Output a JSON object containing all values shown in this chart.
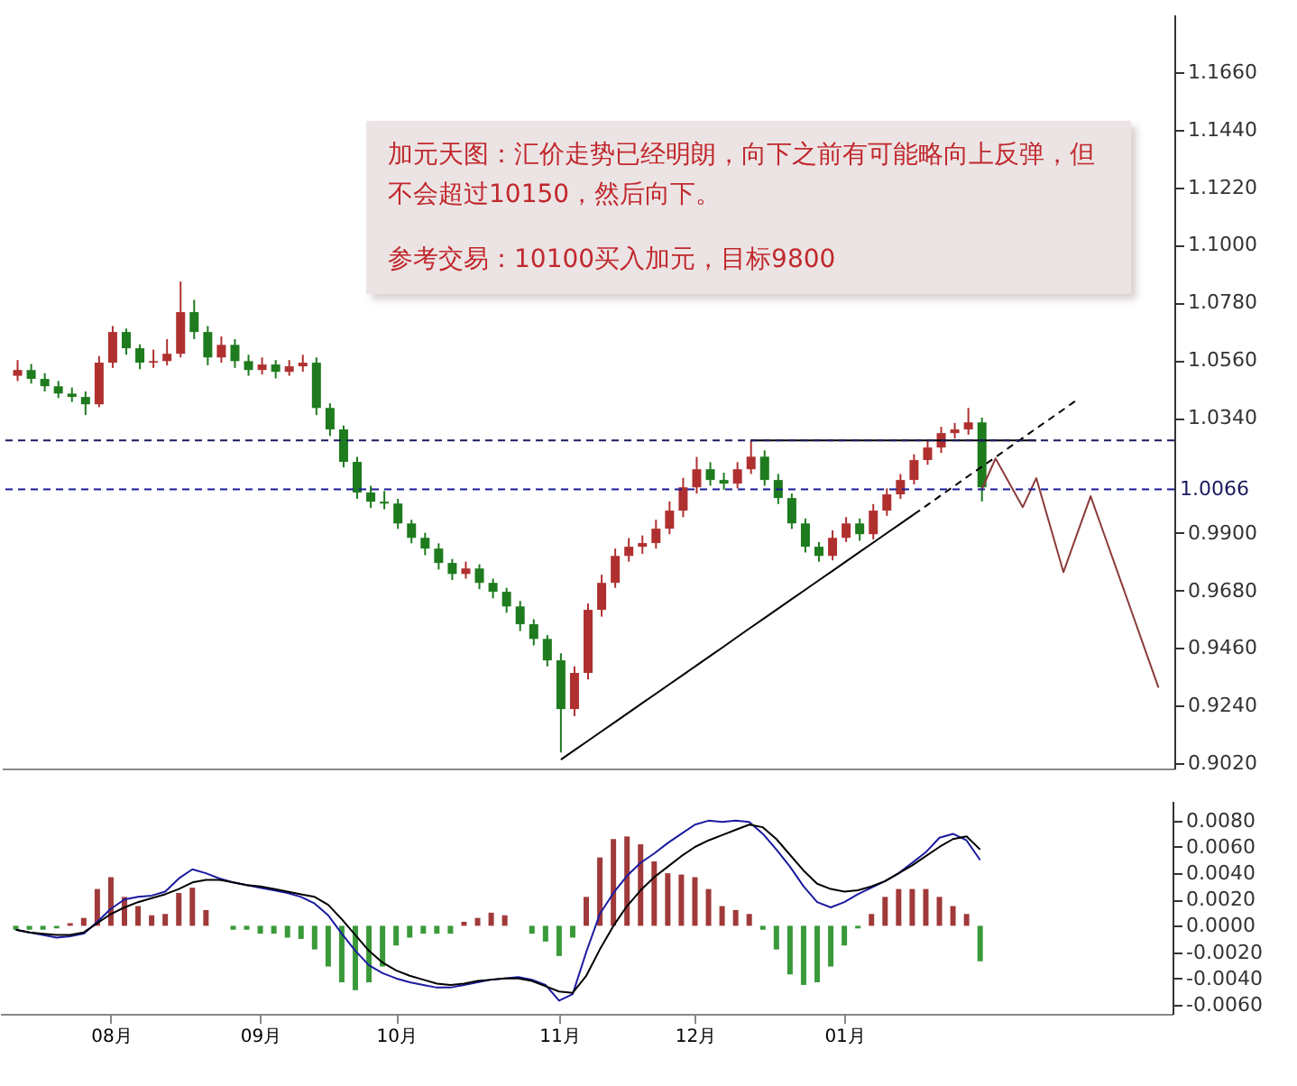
{
  "chart_data": [
    {
      "type": "candlestick",
      "annotations": [
        "加元天图：汇价走势已经明朗，向下之前有可能略向上反弹，但不会超过10150，然后向下。",
        "参考交易：10100买入加元，目标9800"
      ],
      "categories": [
        null,
        null,
        null,
        null,
        null,
        null,
        null,
        null,
        null,
        null,
        null,
        null,
        null,
        null,
        null,
        null,
        null,
        null,
        null,
        null,
        null,
        null,
        null,
        null,
        null,
        null,
        null,
        null,
        null,
        null,
        null,
        null,
        null,
        null,
        null,
        null,
        null,
        null,
        null,
        null,
        null,
        null,
        null,
        null,
        null,
        null,
        null,
        null,
        null,
        null,
        null,
        null,
        null,
        null,
        null,
        null,
        null,
        null,
        null,
        null,
        null,
        null,
        null,
        null,
        null,
        null,
        null,
        null,
        null,
        null,
        null,
        null,
        null,
        null,
        null,
        null,
        null,
        null,
        null,
        null,
        null,
        null,
        null,
        null,
        null
      ],
      "ohlc": [
        [
          1.05,
          1.056,
          1.048,
          1.0522
        ],
        [
          1.0522,
          1.0545,
          1.047,
          1.0488
        ],
        [
          1.0488,
          1.051,
          1.044,
          1.046
        ],
        [
          1.046,
          1.048,
          1.0415,
          1.0432
        ],
        [
          1.0432,
          1.0455,
          1.04,
          1.0419
        ],
        [
          1.0419,
          1.044,
          1.035,
          1.0391
        ],
        [
          1.0391,
          1.0575,
          1.038,
          1.055
        ],
        [
          1.055,
          1.069,
          1.053,
          1.0667
        ],
        [
          1.0667,
          1.068,
          1.058,
          1.0605
        ],
        [
          1.0605,
          1.062,
          1.0525,
          1.055
        ],
        [
          1.055,
          1.06,
          1.053,
          1.0556
        ],
        [
          1.0556,
          1.064,
          1.054,
          1.0584
        ],
        [
          1.0584,
          1.086,
          1.057,
          1.0743
        ],
        [
          1.0743,
          1.079,
          1.064,
          1.0667
        ],
        [
          1.0667,
          1.069,
          1.054,
          1.057
        ],
        [
          1.057,
          1.065,
          1.055,
          1.0618
        ],
        [
          1.0618,
          1.064,
          1.053,
          1.0556
        ],
        [
          1.0556,
          1.058,
          1.05,
          1.0522
        ],
        [
          1.0522,
          1.057,
          1.0505,
          1.0543
        ],
        [
          1.0543,
          1.056,
          1.049,
          1.0515
        ],
        [
          1.0515,
          1.056,
          1.05,
          1.0536
        ],
        [
          1.0536,
          1.058,
          1.0515,
          1.055
        ],
        [
          1.055,
          1.057,
          1.035,
          1.0377
        ],
        [
          1.0377,
          1.0395,
          1.027,
          1.0295
        ],
        [
          1.0295,
          1.031,
          1.015,
          1.0171
        ],
        [
          1.0171,
          1.019,
          1.003,
          1.0054
        ],
        [
          1.0054,
          1.008,
          0.9995,
          1.0019
        ],
        [
          1.0019,
          1.006,
          0.999,
          1.0012
        ],
        [
          1.0012,
          1.003,
          0.9915,
          0.9936
        ],
        [
          0.9936,
          0.995,
          0.986,
          0.9881
        ],
        [
          0.9881,
          0.99,
          0.9815,
          0.984
        ],
        [
          0.984,
          0.986,
          0.976,
          0.9785
        ],
        [
          0.9785,
          0.98,
          0.972,
          0.9743
        ],
        [
          0.9743,
          0.979,
          0.9725,
          0.9764
        ],
        [
          0.9764,
          0.978,
          0.9685,
          0.9709
        ],
        [
          0.9709,
          0.9725,
          0.965,
          0.9675
        ],
        [
          0.9675,
          0.969,
          0.9595,
          0.9619
        ],
        [
          0.9619,
          0.964,
          0.9525,
          0.9551
        ],
        [
          0.9551,
          0.957,
          0.947,
          0.9495
        ],
        [
          0.9495,
          0.951,
          0.939,
          0.9413
        ],
        [
          0.9413,
          0.944,
          0.9061,
          0.9227
        ],
        [
          0.9227,
          0.939,
          0.92,
          0.9365
        ],
        [
          0.9365,
          0.963,
          0.934,
          0.9606
        ],
        [
          0.9606,
          0.974,
          0.958,
          0.9709
        ],
        [
          0.9709,
          0.984,
          0.969,
          0.9812
        ],
        [
          0.9812,
          0.988,
          0.979,
          0.9847
        ],
        [
          0.9847,
          0.989,
          0.982,
          0.9861
        ],
        [
          0.9861,
          0.995,
          0.984,
          0.9916
        ],
        [
          0.9916,
          1.002,
          0.9895,
          0.9985
        ],
        [
          0.9985,
          1.011,
          0.996,
          1.0074
        ],
        [
          1.0074,
          1.019,
          1.005,
          1.0143
        ],
        [
          1.0143,
          1.017,
          1.008,
          1.0102
        ],
        [
          1.0102,
          1.013,
          1.0065,
          1.0088
        ],
        [
          1.0088,
          1.017,
          1.007,
          1.0143
        ],
        [
          1.0143,
          1.0253,
          1.0125,
          1.0191
        ],
        [
          1.0191,
          1.0215,
          1.008,
          1.0102
        ],
        [
          1.0102,
          1.0125,
          1.001,
          1.0033
        ],
        [
          1.0033,
          1.005,
          0.9915,
          0.9936
        ],
        [
          0.9936,
          0.9955,
          0.9825,
          0.9847
        ],
        [
          0.9847,
          0.9865,
          0.979,
          0.9812
        ],
        [
          0.9812,
          0.991,
          0.9795,
          0.9881
        ],
        [
          0.9881,
          0.996,
          0.9865,
          0.9936
        ],
        [
          0.9936,
          0.9955,
          0.987,
          0.9895
        ],
        [
          0.9895,
          1.001,
          0.9875,
          0.9985
        ],
        [
          0.9985,
          1.007,
          0.9965,
          1.0047
        ],
        [
          1.0047,
          1.0125,
          1.003,
          1.0102
        ],
        [
          1.0102,
          1.02,
          1.0085,
          1.0178
        ],
        [
          1.0178,
          1.025,
          1.016,
          1.0226
        ],
        [
          1.0226,
          1.0305,
          1.0205,
          1.0281
        ],
        [
          1.0281,
          1.032,
          1.026,
          1.0295
        ],
        [
          1.0295,
          1.0377,
          1.0275,
          1.0322
        ],
        [
          1.0322,
          1.034,
          1.002,
          1.0074
        ],
        null,
        null,
        null,
        null,
        null,
        null,
        null,
        null,
        null,
        null,
        null,
        null,
        null
      ],
      "colors": [
        "#b03030",
        "#1e7b1e",
        "#1e7b1e",
        "#1e7b1e",
        "#1e7b1e",
        "#1e7b1e",
        "#b03030",
        "#b03030",
        "#1e7b1e",
        "#1e7b1e",
        "#b03030",
        "#b03030",
        "#b03030",
        "#1e7b1e",
        "#1e7b1e",
        "#b03030",
        "#1e7b1e",
        "#1e7b1e",
        "#b03030",
        "#1e7b1e",
        "#b03030",
        "#b03030",
        "#1e7b1e",
        "#1e7b1e",
        "#1e7b1e",
        "#1e7b1e",
        "#1e7b1e",
        "#1e7b1e",
        "#1e7b1e",
        "#1e7b1e",
        "#1e7b1e",
        "#1e7b1e",
        "#1e7b1e",
        "#b03030",
        "#1e7b1e",
        "#1e7b1e",
        "#1e7b1e",
        "#1e7b1e",
        "#1e7b1e",
        "#1e7b1e",
        "#1e7b1e",
        "#b03030",
        "#b03030",
        "#b03030",
        "#b03030",
        "#b03030",
        "#b03030",
        "#b03030",
        "#b03030",
        "#b03030",
        "#b03030",
        "#1e7b1e",
        "#1e7b1e",
        "#b03030",
        "#b03030",
        "#1e7b1e",
        "#1e7b1e",
        "#1e7b1e",
        "#1e7b1e",
        "#1e7b1e",
        "#b03030",
        "#b03030",
        "#1e7b1e",
        "#b03030",
        "#b03030",
        "#b03030",
        "#b03030",
        "#b03030",
        "#b03030",
        "#b03030",
        "#b03030",
        "#1e7b1e",
        null,
        null,
        null,
        null,
        null,
        null,
        null,
        null,
        null,
        null,
        null,
        null,
        null
      ],
      "series": [
        {
          "type": "line",
          "color": "#000000",
          "values": [
            null,
            null,
            null,
            null,
            null,
            null,
            null,
            null,
            null,
            null,
            null,
            null,
            null,
            null,
            null,
            null,
            null,
            null,
            null,
            null,
            null,
            null,
            null,
            null,
            null,
            null,
            null,
            null,
            null,
            null,
            null,
            null,
            null,
            null,
            null,
            null,
            null,
            null,
            null,
            null,
            0.9034,
            0.907,
            0.9106,
            0.9142,
            0.9178,
            0.9214,
            0.925,
            0.9286,
            0.9322,
            0.9358,
            0.9394,
            0.943,
            0.9466,
            0.9503,
            0.9539,
            0.9575,
            0.9611,
            0.9647,
            0.9683,
            0.9719,
            0.9755,
            0.9791,
            0.9827,
            0.9863,
            0.9899,
            0.9935,
            0.9971,
            null,
            null,
            null,
            null,
            null,
            null,
            null,
            null,
            null,
            null,
            null,
            null,
            null,
            null,
            null,
            null,
            null,
            null
          ]
        },
        {
          "type": "line",
          "color": "#000000",
          "line_style": "dashed",
          "values": [
            null,
            null,
            null,
            null,
            null,
            null,
            null,
            null,
            null,
            null,
            null,
            null,
            null,
            null,
            null,
            null,
            null,
            null,
            null,
            null,
            null,
            null,
            null,
            null,
            null,
            null,
            null,
            null,
            null,
            null,
            null,
            null,
            null,
            null,
            null,
            null,
            null,
            null,
            null,
            null,
            null,
            null,
            null,
            null,
            null,
            null,
            null,
            null,
            null,
            null,
            null,
            null,
            null,
            null,
            null,
            null,
            null,
            null,
            null,
            null,
            null,
            null,
            null,
            null,
            null,
            null,
            0.9971,
            1.0007,
            1.0044,
            1.008,
            1.0117,
            1.0153,
            1.0189,
            1.0226,
            1.0262,
            1.0299,
            1.0335,
            1.0371,
            1.0408,
            null,
            null,
            null,
            null,
            null,
            null
          ]
        },
        {
          "type": "line",
          "color": "#000000",
          "values": [
            null,
            null,
            null,
            null,
            null,
            null,
            null,
            null,
            null,
            null,
            null,
            null,
            null,
            null,
            null,
            null,
            null,
            null,
            null,
            null,
            null,
            null,
            null,
            null,
            null,
            null,
            null,
            null,
            null,
            null,
            null,
            null,
            null,
            null,
            null,
            null,
            null,
            null,
            null,
            null,
            null,
            null,
            null,
            null,
            null,
            null,
            null,
            null,
            null,
            null,
            null,
            null,
            null,
            null,
            1.0253,
            1.0253,
            1.0253,
            1.0253,
            1.0253,
            1.0253,
            1.0253,
            1.0253,
            1.0253,
            1.0253,
            1.0253,
            1.0253,
            1.0253,
            1.0253,
            1.0253,
            1.0253,
            1.0253,
            1.0253,
            1.0253,
            1.0253,
            1.0253,
            1.0253,
            null,
            null,
            null,
            null,
            null,
            null,
            null,
            null,
            null
          ]
        },
        {
          "type": "line",
          "color": "#8b3a3a",
          "values": [
            null,
            null,
            null,
            null,
            null,
            null,
            null,
            null,
            null,
            null,
            null,
            null,
            null,
            null,
            null,
            null,
            null,
            null,
            null,
            null,
            null,
            null,
            null,
            null,
            null,
            null,
            null,
            null,
            null,
            null,
            null,
            null,
            null,
            null,
            null,
            null,
            null,
            null,
            null,
            null,
            null,
            null,
            null,
            null,
            null,
            null,
            null,
            null,
            null,
            null,
            null,
            null,
            null,
            null,
            null,
            null,
            null,
            null,
            null,
            null,
            null,
            null,
            null,
            null,
            null,
            null,
            null,
            null,
            null,
            null,
            null,
            1.0067,
            1.0184,
            1.0091,
            0.9998,
            1.0109,
            0.993,
            0.975,
            0.9895,
            1.004,
            0.9894,
            0.9748,
            0.9602,
            0.9455,
            0.9309
          ]
        }
      ],
      "ref_lines": [
        {
          "axis": "y",
          "value": 1.0253,
          "color": "#1a1a60",
          "line_style": "dashed"
        },
        {
          "axis": "y",
          "value": 1.0066,
          "label": "1.0066",
          "color": "#1a1a9a",
          "line_style": "dashed"
        }
      ],
      "ylim": [
        0.9,
        1.188
      ],
      "yticks": [
        {
          "value": 0.902,
          "label": "0.9020"
        },
        {
          "value": 0.924,
          "label": "0.9240"
        },
        {
          "value": 0.946,
          "label": "0.9460"
        },
        {
          "value": 0.968,
          "label": "0.9680"
        },
        {
          "value": 0.99,
          "label": "0.9900"
        },
        {
          "value": 1.034,
          "label": "1.0340"
        },
        {
          "value": 1.056,
          "label": "1.0560"
        },
        {
          "value": 1.078,
          "label": "1.0780"
        },
        {
          "value": 1.1,
          "label": "1.1000"
        },
        {
          "value": 1.122,
          "label": "1.1220"
        },
        {
          "value": 1.144,
          "label": "1.1440"
        },
        {
          "value": 1.166,
          "label": "1.1660"
        }
      ],
      "tick_labels": "y"
    },
    {
      "type": "bar",
      "categories": [
        null,
        null,
        null,
        null,
        null,
        null,
        null,
        "08月",
        null,
        null,
        null,
        null,
        null,
        null,
        null,
        null,
        null,
        null,
        "09月",
        null,
        null,
        null,
        null,
        null,
        null,
        null,
        null,
        null,
        "10月",
        null,
        null,
        null,
        null,
        null,
        null,
        null,
        null,
        null,
        null,
        null,
        "11月",
        null,
        null,
        null,
        null,
        null,
        null,
        null,
        null,
        null,
        "12月",
        null,
        null,
        null,
        null,
        null,
        null,
        null,
        null,
        null,
        null,
        "01月",
        null,
        null,
        null,
        null,
        null,
        null,
        null,
        null,
        null,
        null,
        null,
        null,
        null,
        null,
        null,
        null,
        null,
        null,
        null,
        null,
        null,
        null,
        null
      ],
      "series": [
        {
          "type": "bar",
          "values": [
            -0.0003,
            -0.0003,
            -0.0003,
            -0.0002,
            0.0002,
            0.0006,
            0.0028,
            0.0037,
            0.0022,
            0.0015,
            0.0008,
            0.0009,
            0.0025,
            0.0029,
            0.0012,
            0.0,
            -0.0003,
            -0.0003,
            -0.0006,
            -0.0006,
            -0.0009,
            -0.001,
            -0.0018,
            -0.0031,
            -0.0043,
            -0.0049,
            -0.0043,
            -0.0031,
            -0.0015,
            -0.0009,
            -0.0006,
            -0.0006,
            -0.0006,
            0.0003,
            0.0006,
            0.001,
            0.0008,
            0.0,
            -0.0006,
            -0.0012,
            -0.0023,
            -0.0009,
            0.0022,
            0.0052,
            0.0066,
            0.0068,
            0.0062,
            0.0049,
            0.004,
            0.0039,
            0.0037,
            0.0028,
            0.0015,
            0.0012,
            0.0009,
            -0.0003,
            -0.0018,
            -0.0037,
            -0.0045,
            -0.0043,
            -0.0031,
            -0.0015,
            -0.0002,
            0.0009,
            0.0022,
            0.0028,
            0.0028,
            0.0028,
            0.0022,
            0.0015,
            0.0009,
            -0.0027,
            null,
            null,
            null,
            null,
            null,
            null,
            null,
            null,
            null,
            null,
            null,
            null,
            null
          ],
          "colors": [
            "#3a9a3a",
            "#3a9a3a",
            "#3a9a3a",
            "#3a9a3a",
            "#a03a3a",
            "#a03a3a",
            "#a03a3a",
            "#a03a3a",
            "#a03a3a",
            "#a03a3a",
            "#a03a3a",
            "#a03a3a",
            "#a03a3a",
            "#a03a3a",
            "#a03a3a",
            "#a03a3a",
            "#3a9a3a",
            "#3a9a3a",
            "#3a9a3a",
            "#3a9a3a",
            "#3a9a3a",
            "#3a9a3a",
            "#3a9a3a",
            "#3a9a3a",
            "#3a9a3a",
            "#3a9a3a",
            "#3a9a3a",
            "#3a9a3a",
            "#3a9a3a",
            "#3a9a3a",
            "#3a9a3a",
            "#3a9a3a",
            "#3a9a3a",
            "#a03a3a",
            "#a03a3a",
            "#a03a3a",
            "#a03a3a",
            "#a03a3a",
            "#3a9a3a",
            "#3a9a3a",
            "#3a9a3a",
            "#3a9a3a",
            "#a03a3a",
            "#a03a3a",
            "#a03a3a",
            "#a03a3a",
            "#a03a3a",
            "#a03a3a",
            "#a03a3a",
            "#a03a3a",
            "#a03a3a",
            "#a03a3a",
            "#a03a3a",
            "#a03a3a",
            "#a03a3a",
            "#3a9a3a",
            "#3a9a3a",
            "#3a9a3a",
            "#3a9a3a",
            "#3a9a3a",
            "#3a9a3a",
            "#3a9a3a",
            "#3a9a3a",
            "#a03a3a",
            "#a03a3a",
            "#a03a3a",
            "#a03a3a",
            "#a03a3a",
            "#a03a3a",
            "#a03a3a",
            "#a03a3a",
            "#3a9a3a",
            null,
            null,
            null,
            null,
            null,
            null,
            null,
            null,
            null,
            null,
            null,
            null,
            null
          ]
        },
        {
          "type": "line",
          "color": "#1a1aa0",
          "values": [
            -0.0003,
            -0.0005,
            -0.0007,
            -0.0009,
            -0.0008,
            -0.0006,
            0.0003,
            0.0013,
            0.002,
            0.0022,
            0.0023,
            0.0026,
            0.0036,
            0.0043,
            0.004,
            0.0036,
            0.0033,
            0.0031,
            0.0029,
            0.0027,
            0.0025,
            0.0022,
            0.0017,
            0.0008,
            -0.0006,
            -0.0019,
            -0.003,
            -0.0036,
            -0.004,
            -0.0043,
            -0.0045,
            -0.0047,
            -0.0047,
            -0.0045,
            -0.0043,
            -0.0041,
            -0.004,
            -0.0039,
            -0.0041,
            -0.0045,
            -0.0057,
            -0.0052,
            -0.002,
            0.0009,
            0.0025,
            0.0038,
            0.0048,
            0.0055,
            0.0063,
            0.007,
            0.0077,
            0.008,
            0.0079,
            0.008,
            0.0079,
            0.007,
            0.0058,
            0.0045,
            0.003,
            0.0018,
            0.0014,
            0.0018,
            0.0024,
            0.0029,
            0.0034,
            0.004,
            0.0048,
            0.0056,
            0.0067,
            0.007,
            0.0065,
            0.005,
            null,
            null,
            null,
            null,
            null,
            null,
            null,
            null,
            null,
            null,
            null,
            null,
            null
          ]
        },
        {
          "type": "line",
          "color": "#000000",
          "values": [
            -0.0003,
            -0.0005,
            -0.0006,
            -0.0007,
            -0.0007,
            -0.0005,
            0.0002,
            0.0009,
            0.0014,
            0.0018,
            0.0021,
            0.0024,
            0.0028,
            0.0033,
            0.0035,
            0.0035,
            0.0033,
            0.0031,
            0.003,
            0.0028,
            0.0026,
            0.0024,
            0.0022,
            0.0016,
            0.0005,
            -0.0007,
            -0.0019,
            -0.0028,
            -0.0034,
            -0.0038,
            -0.0041,
            -0.0044,
            -0.0045,
            -0.0044,
            -0.0042,
            -0.0041,
            -0.004,
            -0.004,
            -0.0042,
            -0.0046,
            -0.005,
            -0.0051,
            -0.0038,
            -0.0018,
            0.0,
            0.0015,
            0.0027,
            0.0037,
            0.0045,
            0.0053,
            0.006,
            0.0065,
            0.0069,
            0.0073,
            0.0077,
            0.0075,
            0.0066,
            0.0054,
            0.0042,
            0.0032,
            0.0028,
            0.0026,
            0.0027,
            0.003,
            0.0034,
            0.004,
            0.0046,
            0.0053,
            0.006,
            0.0066,
            0.0068,
            0.0058,
            null,
            null,
            null,
            null,
            null,
            null,
            null,
            null,
            null,
            null,
            null,
            null,
            null
          ]
        }
      ],
      "ylim": [
        -0.0067,
        0.0095
      ],
      "yticks": [
        {
          "value": -0.006,
          "label": "-0.0060"
        },
        {
          "value": -0.004,
          "label": "-0.0040"
        },
        {
          "value": -0.002,
          "label": "-0.0020"
        },
        {
          "value": 0,
          "label": "0.0000"
        },
        {
          "value": 0.002,
          "label": "0.0020"
        },
        {
          "value": 0.004,
          "label": "0.0040"
        },
        {
          "value": 0.006,
          "label": "0.0060"
        },
        {
          "value": 0.008,
          "label": "0.0080"
        }
      ]
    }
  ]
}
